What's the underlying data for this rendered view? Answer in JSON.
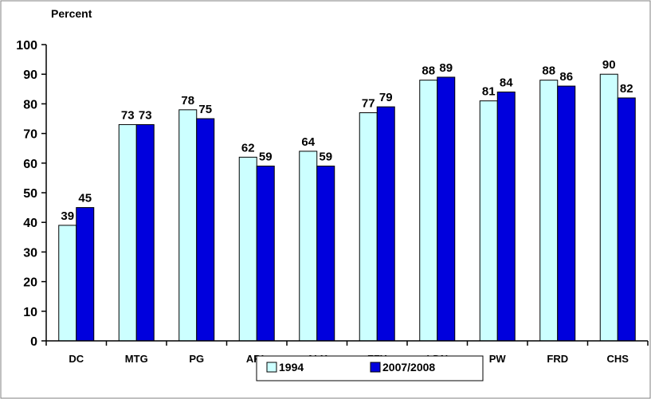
{
  "chart_data": {
    "type": "bar",
    "ylabel": "Percent",
    "ylim": [
      0,
      100
    ],
    "yticks": [
      0,
      10,
      20,
      30,
      40,
      50,
      60,
      70,
      80,
      90,
      100
    ],
    "grid": false,
    "legend_position": "bottom",
    "categories": [
      "DC",
      "MTG",
      "PG",
      "ARL",
      "ALX",
      "FFX",
      "LDN",
      "PW",
      "FRD",
      "CHS"
    ],
    "series": [
      {
        "name": "1994",
        "color": "#ccffff",
        "values": [
          39,
          73,
          78,
          62,
          64,
          77,
          88,
          81,
          88,
          90
        ]
      },
      {
        "name": "2007/2008",
        "color": "#0000dd",
        "values": [
          45,
          73,
          75,
          59,
          59,
          79,
          89,
          84,
          86,
          82
        ]
      }
    ]
  }
}
